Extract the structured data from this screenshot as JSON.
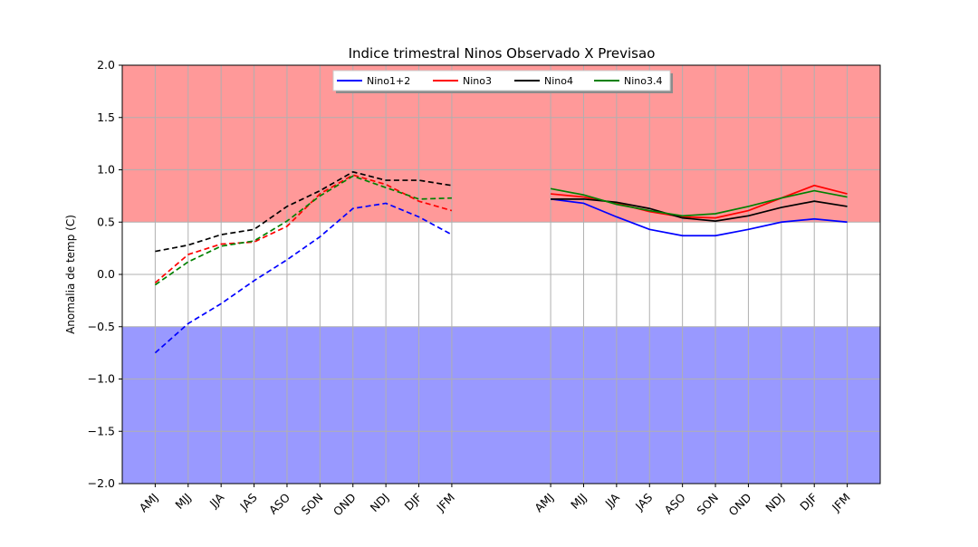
{
  "chart_data": {
    "type": "line",
    "title": "Indice trimestral Ninos Observado X Previsao",
    "xlabel": "",
    "ylabel": "Anomalia de temp (C)",
    "ylim": [
      -2.0,
      2.0
    ],
    "yticks": [
      -2.0,
      -1.5,
      -1.0,
      -0.5,
      0.0,
      0.5,
      1.0,
      1.5,
      2.0
    ],
    "ytick_labels": [
      "−2.0",
      "−1.5",
      "−1.0",
      "−0.5",
      "0.0",
      "0.5",
      "1.0",
      "1.5",
      "2.0"
    ],
    "grid": true,
    "legend_position": "top-center",
    "bands": [
      {
        "from": 0.5,
        "to": 2.0,
        "color": "#ff9999"
      },
      {
        "from": -2.0,
        "to": -0.5,
        "color": "#9999ff"
      }
    ],
    "x_positions": [
      1,
      2,
      3,
      4,
      5,
      6,
      7,
      8,
      9,
      10,
      13,
      14,
      15,
      16,
      17,
      18,
      19,
      20,
      21,
      22
    ],
    "x_range": [
      0,
      23
    ],
    "categories": [
      "AMJ",
      "MJJ",
      "JJA",
      "JAS",
      "ASO",
      "SON",
      "OND",
      "NDJ",
      "DJF",
      "JFM",
      "AMJ",
      "MJJ",
      "JJA",
      "JAS",
      "ASO",
      "SON",
      "OND",
      "NDJ",
      "DJF",
      "JFM"
    ],
    "series": [
      {
        "name": "Nino1+2",
        "color": "#0000ff",
        "values": [
          -0.75,
          -0.47,
          -0.28,
          -0.06,
          0.14,
          0.36,
          0.63,
          0.68,
          0.55,
          0.38,
          0.72,
          0.68,
          0.55,
          0.43,
          0.37,
          0.37,
          0.43,
          0.5,
          0.53,
          0.5
        ]
      },
      {
        "name": "Nino3",
        "color": "#ff0000",
        "values": [
          -0.08,
          0.19,
          0.29,
          0.31,
          0.46,
          0.77,
          0.95,
          0.86,
          0.7,
          0.61,
          0.77,
          0.74,
          0.68,
          0.6,
          0.55,
          0.54,
          0.61,
          0.73,
          0.85,
          0.77
        ]
      },
      {
        "name": "Nino4",
        "color": "#000000",
        "values": [
          0.22,
          0.28,
          0.38,
          0.43,
          0.65,
          0.8,
          0.98,
          0.9,
          0.9,
          0.85,
          0.72,
          0.72,
          0.69,
          0.63,
          0.54,
          0.51,
          0.56,
          0.64,
          0.7,
          0.65
        ]
      },
      {
        "name": "Nino3.4",
        "color": "#008000",
        "values": [
          -0.1,
          0.12,
          0.27,
          0.32,
          0.51,
          0.75,
          0.94,
          0.83,
          0.72,
          0.73,
          0.82,
          0.76,
          0.67,
          0.61,
          0.56,
          0.58,
          0.65,
          0.73,
          0.8,
          0.74
        ]
      }
    ],
    "observed_count": 10
  }
}
